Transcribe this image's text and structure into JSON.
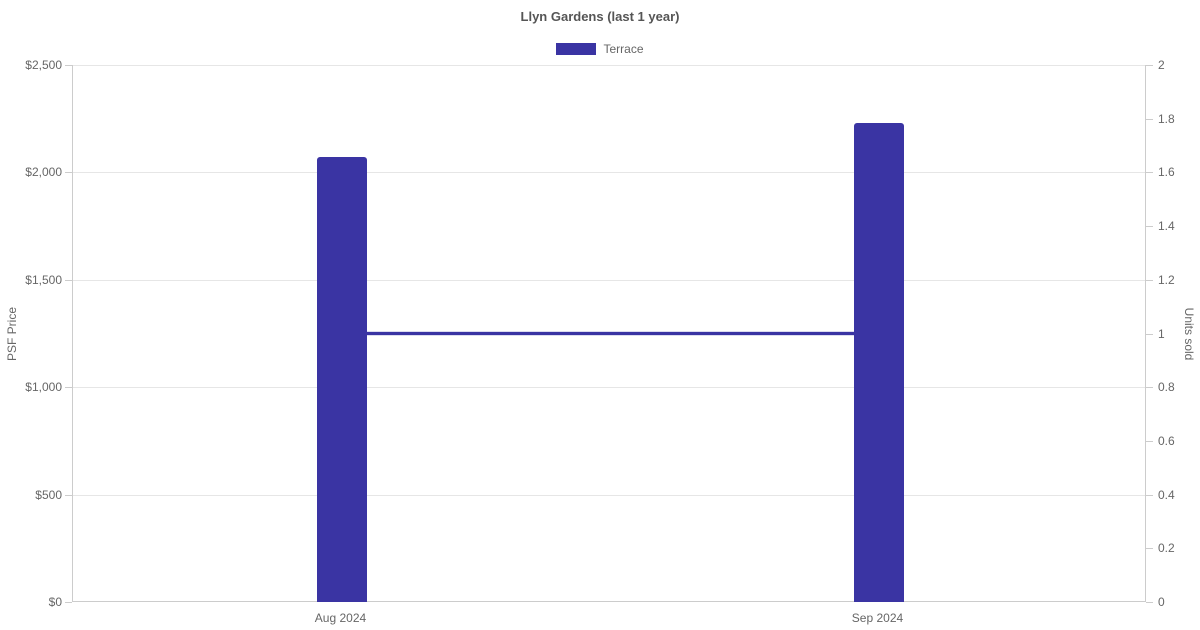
{
  "chart_data": {
    "type": "bar+line",
    "title": "Llyn Gardens (last 1 year)",
    "categories": [
      "Aug 2024",
      "Sep 2024"
    ],
    "series": [
      {
        "name": "Terrace",
        "type": "bar",
        "axis": "left",
        "values": [
          2070,
          2230
        ],
        "color": "#3a34a3"
      },
      {
        "name": "Terrace",
        "type": "line",
        "axis": "right",
        "values": [
          1,
          1
        ],
        "color": "#3a34a3"
      }
    ],
    "left_axis": {
      "label": "PSF Price",
      "min": 0,
      "max": 2500,
      "tick_step": 500,
      "ticks": [
        "$2,500",
        "$2,000",
        "$1,500",
        "$1,000",
        "$500",
        "$0"
      ]
    },
    "right_axis": {
      "label": "Units sold",
      "min": 0,
      "max": 2,
      "tick_step": 0.2,
      "ticks": [
        "2",
        "1.8",
        "1.6",
        "1.4",
        "1.2",
        "1",
        "0.8",
        "0.6",
        "0.4",
        "0.2",
        "0"
      ]
    },
    "legend_position": "top-center",
    "grid": true
  },
  "colors": {
    "bar": "#3a34a3",
    "line": "#3a34a3",
    "grid": "#e6e6e6",
    "axis_line": "#cccccc",
    "tick_text": "#666666",
    "title_text": "#555555"
  }
}
